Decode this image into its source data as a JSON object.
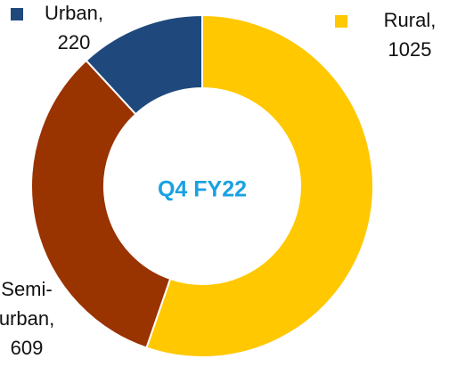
{
  "chart_data": {
    "type": "donut",
    "title": "Q4 FY22",
    "values": [
      220,
      1025,
      609
    ],
    "value_labels": [
      "Urban, 220",
      "Rural, 1025",
      "Semi-urban, 609"
    ],
    "colors": [
      "#1f497d",
      "#ffc800",
      "#993300"
    ]
  }
}
